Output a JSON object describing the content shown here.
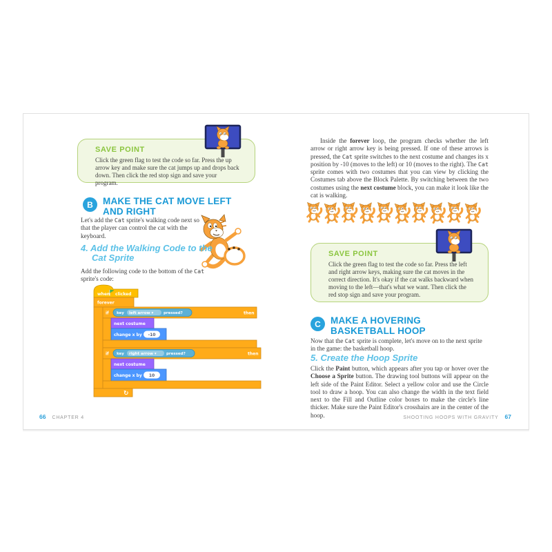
{
  "colors": {
    "accent_blue": "#1899d6",
    "circle_blue": "#29a3dd",
    "step_blue": "#5bc1e7",
    "save_green": "#8bc53f",
    "box_border": "#b5d37b",
    "box_bg": "#f1f7e3",
    "scratch_control": "#ffab19",
    "scratch_events": "#ffbf00",
    "scratch_motion": "#4c97ff",
    "scratch_looks": "#9966ff",
    "scratch_sensing": "#5cb1d6",
    "cat_orange": "#f7a13b"
  },
  "left_page": {
    "save_point": {
      "title": "SAVE POINT",
      "body": "Click the green flag to test the code so far. Press the up arrow key and make sure the cat jumps up and drops back down. Then click the red stop sign and save your program."
    },
    "section_b": {
      "marker": "B",
      "title": "MAKE THE CAT MOVE LEFT AND RIGHT",
      "intro": [
        {
          "t": "Let's add the "
        },
        {
          "t": "Cat",
          "s": "m"
        },
        {
          "t": " sprite's walking code next so that the player can control the cat with the keyboard."
        }
      ]
    },
    "step4": {
      "heading_line1": "4. Add the Walking Code to the",
      "heading_line2": "Cat Sprite",
      "body": [
        {
          "t": "Add the following code to the bottom of the "
        },
        {
          "t": "Cat",
          "s": "m"
        },
        {
          "t": " sprite's code:"
        }
      ]
    },
    "code": {
      "hat_when": "when",
      "hat_clicked": "clicked",
      "forever": "forever",
      "if_label": "if",
      "then_label": "then",
      "key_label": "key",
      "pressed_label": "pressed?",
      "dropdown_glyph": "▾",
      "if1_option": "left arrow",
      "if2_option": "right arrow",
      "next_costume": "next costume",
      "change_x": "change x by",
      "if1_value": "-10",
      "if2_value": "10",
      "loop_glyph": "↻"
    },
    "footer": {
      "page_number": "66",
      "label": "CHAPTER 4"
    }
  },
  "right_page": {
    "main_paragraph": [
      {
        "t": "Inside the "
      },
      {
        "t": "forever",
        "s": "b"
      },
      {
        "t": " loop, the program checks whether the left arrow or right arrow key is being pressed. If one of these arrows is pressed, the "
      },
      {
        "t": "Cat",
        "s": "m"
      },
      {
        "t": " sprite switches to the next costume and changes its x position by -10 (moves to the left) or 10 (moves to the right). The "
      },
      {
        "t": "Cat",
        "s": "m"
      },
      {
        "t": " sprite comes with two costumes that you can view by clicking the Costumes tab above the Block Palette. By switching between the two costumes using the "
      },
      {
        "t": "next costume",
        "s": "b"
      },
      {
        "t": " block, you can make it look like the cat is walking."
      }
    ],
    "cats_row": {
      "count": 10
    },
    "save_point": {
      "title": "SAVE POINT",
      "body": "Click the green flag to test the code so far. Press the left and right arrow keys, making sure the cat moves in the correct direction. It's okay if the cat walks backward when moving to the left—that's what we want. Then click the red stop sign and save your program."
    },
    "section_c": {
      "marker": "C",
      "title": "MAKE A HOVERING BASKETBALL HOOP",
      "intro": [
        {
          "t": "Now that the "
        },
        {
          "t": "Cat",
          "s": "m"
        },
        {
          "t": " sprite is complete, let's move on to the next sprite in the game: the basketball hoop."
        }
      ]
    },
    "step5": {
      "heading": "5. Create the Hoop Sprite",
      "body": [
        {
          "t": "Click the "
        },
        {
          "t": "Paint",
          "s": "b"
        },
        {
          "t": " button, which appears after you tap or hover over the "
        },
        {
          "t": "Choose a Sprite",
          "s": "b"
        },
        {
          "t": " button. The drawing tool buttons will appear on the left side of the Paint Editor. Select a yellow color and use the Circle tool to draw a hoop. You can also change the width in the text field next to the Fill and Outline color boxes to make the circle's line thicker. Make sure the Paint Editor's crosshairs are in the center of the hoop."
        }
      ]
    },
    "footer": {
      "label": "SHOOTING HOOPS WITH GRAVITY",
      "page_number": "67"
    }
  }
}
